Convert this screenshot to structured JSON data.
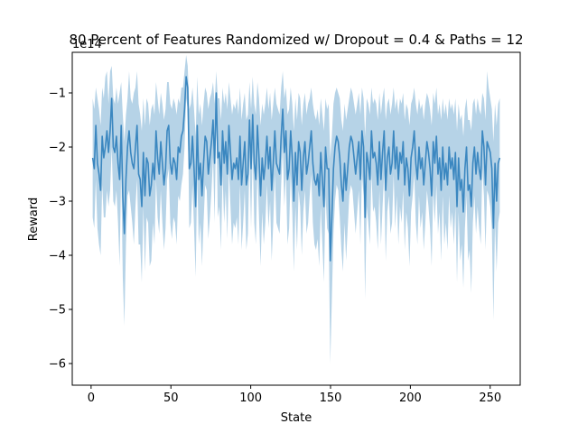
{
  "chart_data": {
    "type": "line",
    "title": "80 Percent of Features Randomized w/ Dropout = 0.4 & Paths = 12",
    "xlabel": "State",
    "ylabel": "Reward",
    "offset_text": "1e14",
    "xlim": [
      -11.8,
      268.8
    ],
    "ylim": [
      -6.4,
      -0.25
    ],
    "xticks": [
      0,
      50,
      100,
      150,
      200,
      250
    ],
    "yticks": [
      -6,
      -5,
      -4,
      -3,
      -2,
      -1
    ],
    "xtick_labels": [
      "0",
      "50",
      "100",
      "150",
      "200",
      "250"
    ],
    "ytick_labels": [
      "−6",
      "−5",
      "−4",
      "−3",
      "−2",
      "−1"
    ],
    "grid": false,
    "x_start": 1,
    "x_end": 256,
    "colors": {
      "line": "#3b87c0",
      "band": "#a9cbe3"
    },
    "series": [
      {
        "mean_values": [
          -2.2,
          -2.4,
          -1.6,
          -2.3,
          -2.5,
          -2.8,
          -1.8,
          -2.2,
          -2.0,
          -1.7,
          -2.1,
          -1.7,
          -1.1,
          -2.0,
          -2.1,
          -1.8,
          -2.3,
          -2.6,
          -1.6,
          -2.9,
          -3.6,
          -2.6,
          -2.0,
          -1.7,
          -2.1,
          -2.3,
          -2.4,
          -2.0,
          -1.6,
          -2.5,
          -2.6,
          -3.1,
          -2.1,
          -2.9,
          -2.2,
          -2.3,
          -2.9,
          -2.7,
          -2.3,
          -2.6,
          -1.7,
          -2.2,
          -2.5,
          -1.9,
          -2.3,
          -2.7,
          -2.4,
          -1.7,
          -1.6,
          -2.3,
          -2.5,
          -2.2,
          -2.3,
          -2.6,
          -2.0,
          -2.1,
          -1.8,
          -1.7,
          -1.3,
          -0.7,
          -0.9,
          -2.4,
          -2.3,
          -1.8,
          -2.4,
          -3.1,
          -1.6,
          -2.6,
          -2.3,
          -2.9,
          -2.3,
          -1.8,
          -1.9,
          -2.5,
          -2.2,
          -1.9,
          -1.5,
          -2.3,
          -1.0,
          -2.2,
          -2.1,
          -2.7,
          -1.7,
          -2.3,
          -1.9,
          -2.5,
          -1.6,
          -2.1,
          -2.6,
          -2.3,
          -2.4,
          -2.2,
          -2.6,
          -1.8,
          -2.7,
          -2.3,
          -1.9,
          -2.7,
          -2.5,
          -1.5,
          -2.4,
          -1.4,
          -2.3,
          -2.6,
          -1.6,
          -2.2,
          -2.9,
          -2.2,
          -2.6,
          -2.3,
          -1.8,
          -2.4,
          -2.0,
          -2.8,
          -2.3,
          -1.7,
          -2.3,
          -2.4,
          -2.5,
          -1.8,
          -1.3,
          -2.1,
          -1.7,
          -2.6,
          -2.4,
          -1.7,
          -2.2,
          -3.0,
          -2.1,
          -2.7,
          -1.9,
          -2.1,
          -2.8,
          -2.2,
          -1.9,
          -2.5,
          -2.3,
          -2.0,
          -1.7,
          -2.3,
          -2.6,
          -2.7,
          -2.5,
          -2.9,
          -2.1,
          -2.6,
          -3.1,
          -2.0,
          -2.4,
          -2.4,
          -4.1,
          -3.3,
          -2.4,
          -2.0,
          -1.8,
          -1.9,
          -2.2,
          -2.7,
          -3.0,
          -2.3,
          -2.8,
          -2.4,
          -2.0,
          -1.8,
          -1.9,
          -2.2,
          -2.5,
          -2.2,
          -1.9,
          -2.6,
          -1.7,
          -2.0,
          -3.3,
          -2.1,
          -2.3,
          -2.6,
          -1.7,
          -2.2,
          -2.1,
          -2.3,
          -2.7,
          -1.9,
          -2.6,
          -2.1,
          -1.7,
          -2.8,
          -2.2,
          -2.0,
          -2.5,
          -2.3,
          -1.7,
          -2.4,
          -2.0,
          -2.6,
          -2.1,
          -2.3,
          -1.9,
          -2.7,
          -2.2,
          -2.4,
          -2.9,
          -2.2,
          -2.0,
          -1.7,
          -2.3,
          -2.6,
          -2.0,
          -2.4,
          -2.2,
          -2.7,
          -2.3,
          -1.9,
          -2.1,
          -2.4,
          -2.9,
          -1.9,
          -2.3,
          -1.8,
          -2.5,
          -2.2,
          -2.8,
          -2.0,
          -2.6,
          -2.3,
          -2.7,
          -2.0,
          -2.4,
          -2.2,
          -2.6,
          -2.1,
          -3.1,
          -2.2,
          -2.8,
          -2.6,
          -3.2,
          -2.4,
          -2.0,
          -2.8,
          -2.7,
          -3.1,
          -2.3,
          -2.0,
          -2.5,
          -2.1,
          -2.4,
          -2.6,
          -1.7,
          -2.0,
          -2.7,
          -1.9,
          -2.0,
          -2.1,
          -2.4,
          -3.5,
          -2.3,
          -3.0,
          -2.3,
          -2.2
        ],
        "upper_values": [
          -1.1,
          -1.3,
          -0.9,
          -1.1,
          -1.3,
          -1.6,
          -0.9,
          -1.1,
          -0.7,
          -0.6,
          -1.2,
          -0.6,
          -0.5,
          -1.1,
          -1.2,
          -0.9,
          -1.2,
          -1.0,
          -0.8,
          -1.4,
          -1.9,
          -1.4,
          -1.1,
          -0.6,
          -1.1,
          -1.2,
          -1.0,
          -0.9,
          -0.6,
          -1.2,
          -1.4,
          -1.7,
          -1.1,
          -1.6,
          -1.1,
          -1.2,
          -1.6,
          -1.3,
          -1.2,
          -1.4,
          -0.8,
          -1.1,
          -1.4,
          -1.0,
          -1.2,
          -1.5,
          -1.3,
          -0.8,
          -0.8,
          -1.2,
          -1.3,
          -1.1,
          -1.2,
          -1.4,
          -1.1,
          -1.2,
          -0.9,
          -0.9,
          -0.6,
          -0.3,
          -0.5,
          -1.3,
          -1.2,
          -0.9,
          -1.3,
          -1.8,
          -0.7,
          -1.4,
          -1.2,
          -1.6,
          -1.2,
          -0.9,
          -1.0,
          -1.3,
          -1.1,
          -1.0,
          -0.8,
          -1.2,
          -0.6,
          -1.1,
          -1.1,
          -1.5,
          -0.9,
          -1.2,
          -1.0,
          -1.3,
          -0.8,
          -1.1,
          -1.4,
          -1.2,
          -1.3,
          -1.1,
          -1.4,
          -0.9,
          -1.5,
          -1.2,
          -1.0,
          -1.5,
          -1.4,
          -0.8,
          -1.3,
          -0.7,
          -1.2,
          -1.4,
          -0.8,
          -1.1,
          -1.6,
          -1.2,
          -1.4,
          -1.2,
          -0.9,
          -1.3,
          -1.0,
          -1.5,
          -1.2,
          -0.9,
          -1.2,
          -1.3,
          -1.4,
          -0.9,
          -0.6,
          -1.1,
          -0.9,
          -1.4,
          -1.3,
          -0.9,
          -1.2,
          -1.7,
          -1.1,
          -1.5,
          -1.0,
          -1.1,
          -1.6,
          -1.2,
          -1.0,
          -1.4,
          -1.2,
          -1.1,
          -0.9,
          -1.2,
          -1.4,
          -1.5,
          -1.3,
          -1.6,
          -1.1,
          -1.4,
          -1.7,
          -1.1,
          -1.3,
          -1.2,
          -2.2,
          -1.8,
          -1.2,
          -1.0,
          -0.9,
          -1.0,
          -1.1,
          -1.5,
          -1.7,
          -1.2,
          -1.5,
          -1.3,
          -1.1,
          -0.9,
          -1.0,
          -1.2,
          -1.4,
          -1.2,
          -1.0,
          -1.4,
          -0.9,
          -1.1,
          -1.8,
          -1.1,
          -1.2,
          -1.4,
          -0.9,
          -1.2,
          -1.1,
          -1.2,
          -1.5,
          -1.0,
          -1.4,
          -1.1,
          -0.9,
          -1.5,
          -1.2,
          -1.1,
          -1.4,
          -1.2,
          -0.9,
          -1.3,
          -1.1,
          -1.4,
          -1.1,
          -1.2,
          -1.0,
          -1.5,
          -1.2,
          -1.3,
          -1.6,
          -1.2,
          -1.1,
          -0.9,
          -1.2,
          -1.4,
          -1.1,
          -1.3,
          -1.2,
          -1.5,
          -1.2,
          -1.0,
          -1.1,
          -1.3,
          -1.6,
          -1.0,
          -1.2,
          -0.9,
          -1.4,
          -1.2,
          -1.5,
          -1.1,
          -1.4,
          -1.2,
          -1.5,
          -1.1,
          -1.3,
          -1.2,
          -1.4,
          -1.1,
          -1.7,
          -1.2,
          -1.5,
          -1.4,
          -1.8,
          -1.3,
          -1.1,
          -1.5,
          -1.5,
          -1.7,
          -1.2,
          -1.1,
          -1.4,
          -1.1,
          -1.3,
          -1.4,
          -1.0,
          -1.1,
          -1.5,
          -0.6,
          -0.9,
          -1.1,
          -1.3,
          -1.9,
          -1.2,
          -1.6,
          -1.2,
          -1.1
        ],
        "lower_values": [
          -3.3,
          -3.5,
          -2.6,
          -3.5,
          -3.8,
          -4.0,
          -2.7,
          -3.3,
          -3.3,
          -2.8,
          -3.1,
          -2.8,
          -2.0,
          -3.0,
          -3.1,
          -2.8,
          -3.4,
          -4.2,
          -2.4,
          -4.4,
          -5.3,
          -3.8,
          -2.9,
          -2.8,
          -3.1,
          -3.4,
          -3.8,
          -3.1,
          -2.6,
          -3.8,
          -3.8,
          -4.5,
          -3.1,
          -4.3,
          -3.3,
          -3.4,
          -4.2,
          -4.1,
          -3.4,
          -3.8,
          -2.6,
          -3.3,
          -3.6,
          -2.8,
          -3.4,
          -3.9,
          -3.5,
          -2.6,
          -2.4,
          -3.4,
          -3.7,
          -3.3,
          -3.4,
          -3.8,
          -2.9,
          -3.0,
          -2.7,
          -2.5,
          -2.0,
          -1.1,
          -1.3,
          -3.5,
          -3.4,
          -2.7,
          -3.5,
          -4.4,
          -2.5,
          -3.8,
          -3.4,
          -4.2,
          -3.4,
          -2.7,
          -2.8,
          -3.7,
          -3.3,
          -2.8,
          -2.2,
          -3.4,
          -1.4,
          -3.3,
          -3.1,
          -3.9,
          -2.5,
          -3.4,
          -2.8,
          -3.7,
          -2.4,
          -3.1,
          -3.8,
          -3.4,
          -3.5,
          -3.3,
          -3.8,
          -2.7,
          -3.9,
          -3.4,
          -2.8,
          -3.9,
          -3.6,
          -2.2,
          -3.5,
          -2.1,
          -3.4,
          -3.8,
          -2.4,
          -3.3,
          -4.2,
          -3.2,
          -3.8,
          -3.4,
          -2.7,
          -3.5,
          -3.0,
          -4.1,
          -3.4,
          -2.5,
          -3.4,
          -3.5,
          -3.6,
          -2.7,
          -2.0,
          -3.1,
          -2.5,
          -3.8,
          -3.5,
          -2.5,
          -3.2,
          -4.3,
          -3.1,
          -3.9,
          -2.8,
          -3.1,
          -4.0,
          -3.2,
          -2.8,
          -3.6,
          -3.4,
          -2.9,
          -2.5,
          -3.4,
          -3.8,
          -3.9,
          -3.7,
          -4.2,
          -3.1,
          -3.8,
          -4.5,
          -2.9,
          -3.5,
          -3.6,
          -6.0,
          -4.8,
          -3.6,
          -3.0,
          -2.7,
          -2.8,
          -3.3,
          -3.9,
          -4.3,
          -3.4,
          -4.1,
          -3.5,
          -2.9,
          -2.7,
          -2.8,
          -3.2,
          -3.6,
          -3.2,
          -2.8,
          -3.8,
          -2.5,
          -2.9,
          -4.8,
          -3.1,
          -3.4,
          -3.8,
          -2.5,
          -3.2,
          -3.1,
          -3.4,
          -3.9,
          -2.8,
          -3.8,
          -3.1,
          -2.5,
          -4.1,
          -3.2,
          -2.9,
          -3.6,
          -3.4,
          -2.5,
          -3.5,
          -2.9,
          -3.8,
          -3.1,
          -3.4,
          -2.8,
          -3.9,
          -3.2,
          -3.5,
          -4.2,
          -3.2,
          -2.9,
          -2.5,
          -3.4,
          -3.8,
          -2.9,
          -3.5,
          -3.2,
          -3.9,
          -3.4,
          -2.8,
          -3.1,
          -3.5,
          -4.2,
          -2.8,
          -3.4,
          -2.7,
          -3.6,
          -3.2,
          -4.1,
          -2.9,
          -3.8,
          -3.4,
          -3.9,
          -2.9,
          -3.5,
          -3.2,
          -3.8,
          -3.1,
          -4.5,
          -3.2,
          -4.1,
          -3.8,
          -4.6,
          -3.5,
          -2.9,
          -4.1,
          -3.9,
          -4.7,
          -3.4,
          -2.9,
          -3.6,
          -3.1,
          -3.5,
          -3.8,
          -2.4,
          -2.9,
          -3.9,
          -2.8,
          -2.9,
          -3.1,
          -3.5,
          -5.2,
          -3.4,
          -4.3,
          -3.4,
          -3.2
        ]
      }
    ]
  }
}
